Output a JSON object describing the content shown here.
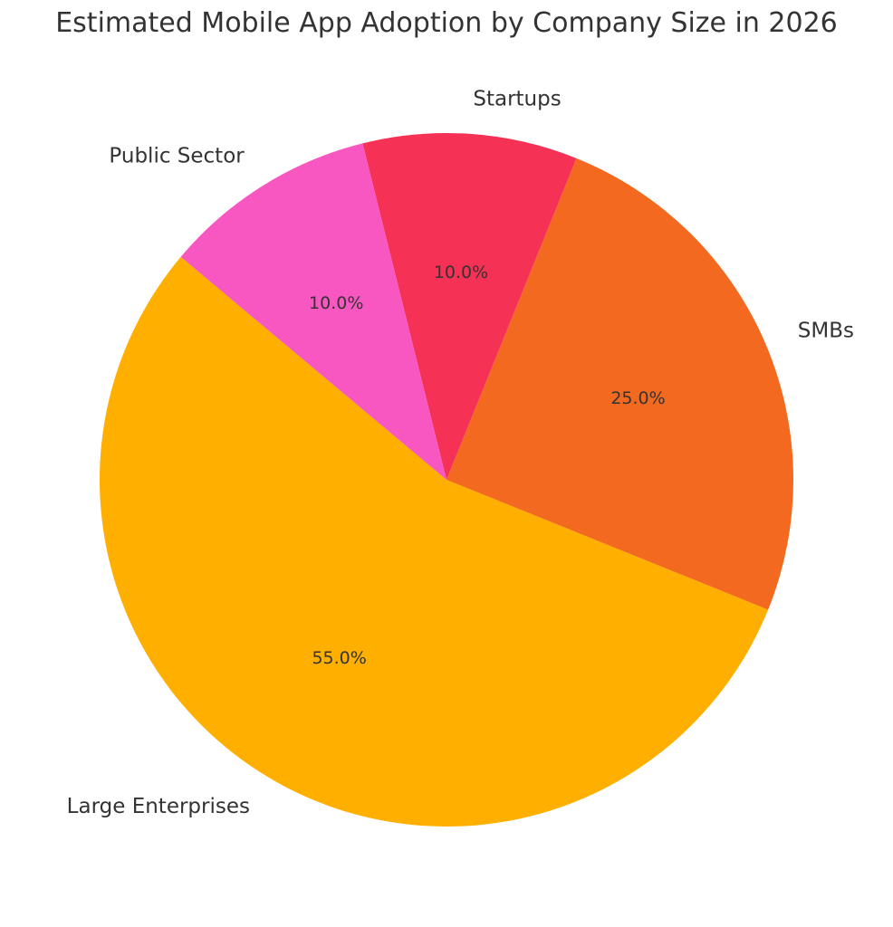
{
  "chart_data": {
    "type": "pie",
    "title": "Estimated Mobile App Adoption by Company Size in 2026",
    "start_angle_deg": 140,
    "direction": "counterclockwise",
    "slices": [
      {
        "label": "Large Enterprises",
        "value": 55.0,
        "pct_label": "55.0%",
        "color": "#FFAF00"
      },
      {
        "label": "SMBs",
        "value": 25.0,
        "pct_label": "25.0%",
        "color": "#F46920"
      },
      {
        "label": "Startups",
        "value": 10.0,
        "pct_label": "10.0%",
        "color": "#F53255"
      },
      {
        "label": "Public Sector",
        "value": 10.0,
        "pct_label": "10.0%",
        "color": "#F857C1"
      }
    ],
    "legend": "none"
  }
}
